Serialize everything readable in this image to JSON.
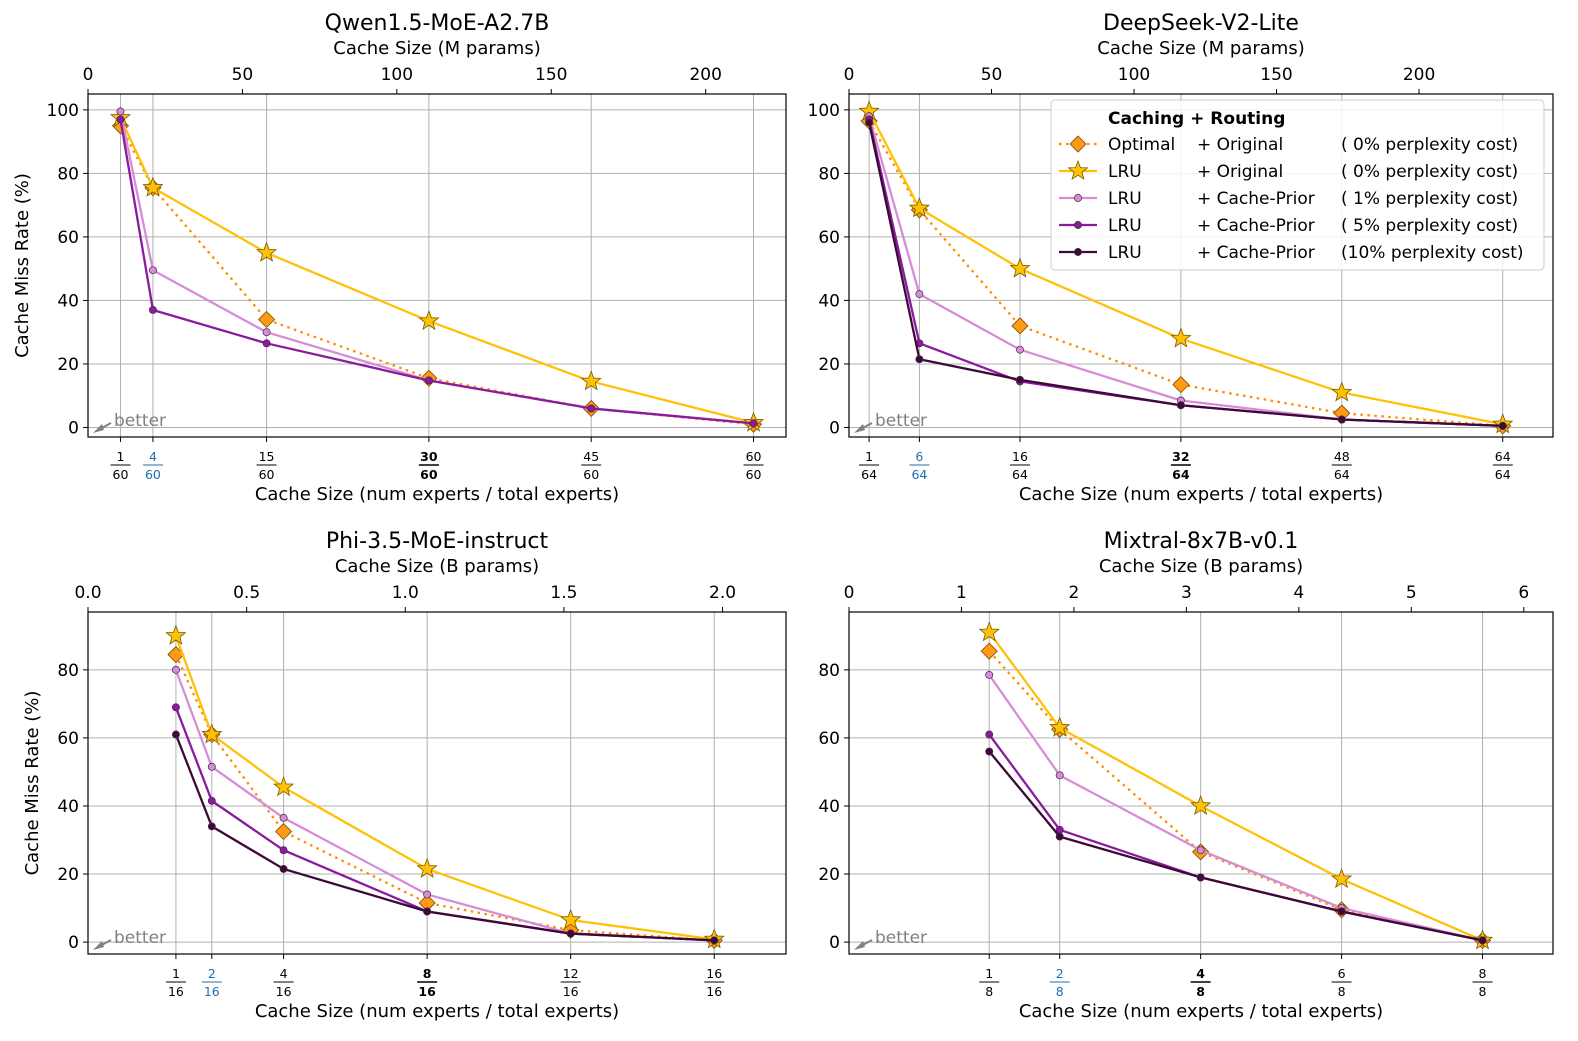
{
  "colors": {
    "optimal": "#ff8c00",
    "optimal_fill": "#ff9a14",
    "lru_original": "#ffc107",
    "cp1": "#d68cd6",
    "cp5": "#8b1a9e",
    "cp10": "#3d0a38",
    "blue_tick": "#1f6fb2",
    "grid": "#b0b0b0",
    "better": "#808080"
  },
  "legend": {
    "title": "Caching + Routing",
    "entries": [
      {
        "key": "optimal",
        "caching": "Optimal",
        "routing": "+ Original",
        "cost": "( 0% perplexity cost)"
      },
      {
        "key": "lru",
        "caching": "LRU",
        "routing": "+ Original",
        "cost": "( 0% perplexity cost)"
      },
      {
        "key": "cp1",
        "caching": "LRU",
        "routing": "+ Cache-Prior",
        "cost": "( 1% perplexity cost)"
      },
      {
        "key": "cp5",
        "caching": "LRU",
        "routing": "+ Cache-Prior",
        "cost": "( 5% perplexity cost)"
      },
      {
        "key": "cp10",
        "caching": "LRU",
        "routing": "+ Cache-Prior",
        "cost": "(10% perplexity cost)"
      }
    ]
  },
  "better_label": "better",
  "chart_data": [
    {
      "type": "line",
      "title": "Qwen1.5-MoE-A2.7B",
      "xlabel": "Cache Size (num experts / total experts)",
      "ylabel": "Cache Miss Rate (%)",
      "top_xlabel": "Cache Size (M params)",
      "total_experts": 60,
      "xlim": [
        -1,
        42
      ],
      "ylim": [
        -3,
        105
      ],
      "yticks": [
        0,
        20,
        40,
        60,
        80,
        100
      ],
      "top_xlim": [
        0,
        226
      ],
      "top_ticks": [
        {
          "v": 0,
          "label": "0"
        },
        {
          "v": 50,
          "label": "50"
        },
        {
          "v": 100,
          "label": "100"
        },
        {
          "v": 150,
          "label": "150"
        },
        {
          "v": 200,
          "label": "200"
        }
      ],
      "xticks": [
        {
          "v": 1,
          "num": "1",
          "den": "60",
          "style": "normal"
        },
        {
          "v": 3,
          "num": "4",
          "den": "60",
          "style": "blue"
        },
        {
          "v": 10,
          "num": "15",
          "den": "60",
          "style": "normal"
        },
        {
          "v": 20,
          "num": "30",
          "den": "60",
          "style": "bold"
        },
        {
          "v": 30,
          "num": "45",
          "den": "60",
          "style": "normal"
        },
        {
          "v": 40,
          "num": "60",
          "den": "60",
          "style": "normal"
        }
      ],
      "better": true,
      "series": [
        {
          "key": "optimal",
          "name": "Optimal + Original",
          "x": [
            1,
            3,
            10,
            20,
            30,
            40
          ],
          "values": [
            95,
            75.5,
            34,
            15.5,
            6,
            1
          ]
        },
        {
          "key": "lru",
          "name": "LRU + Original",
          "x": [
            1,
            3,
            10,
            20,
            30,
            40
          ],
          "values": [
            97.5,
            75.5,
            55,
            33.5,
            14.5,
            1.5
          ]
        },
        {
          "key": "cp1",
          "name": "LRU + Cache-Prior (1%)",
          "x": [
            1,
            3,
            10,
            20,
            30,
            40
          ],
          "values": [
            99.5,
            49.5,
            30,
            14.8,
            6,
            1.3
          ]
        },
        {
          "key": "cp5",
          "name": "LRU + Cache-Prior (5%)",
          "x": [
            1,
            3,
            10,
            20,
            30,
            40
          ],
          "values": [
            97,
            37,
            26.5,
            14.8,
            6,
            1.3
          ]
        }
      ],
      "show_legend": false
    },
    {
      "type": "line",
      "title": "DeepSeek-V2-Lite",
      "xlabel": "Cache Size (num experts / total experts)",
      "ylabel": "",
      "top_xlabel": "Cache Size (M params)",
      "total_experts": 64,
      "xlim": [
        -1,
        69
      ],
      "ylim": [
        -3,
        105
      ],
      "yticks": [
        0,
        20,
        40,
        60,
        80,
        100
      ],
      "top_xlim": [
        0,
        247
      ],
      "top_ticks": [
        {
          "v": 0,
          "label": "0"
        },
        {
          "v": 50,
          "label": "50"
        },
        {
          "v": 100,
          "label": "100"
        },
        {
          "v": 150,
          "label": "150"
        },
        {
          "v": 200,
          "label": "200"
        }
      ],
      "xticks": [
        {
          "v": 1,
          "num": "1",
          "den": "64",
          "style": "normal"
        },
        {
          "v": 6,
          "num": "6",
          "den": "64",
          "style": "blue"
        },
        {
          "v": 16,
          "num": "16",
          "den": "64",
          "style": "normal"
        },
        {
          "v": 32,
          "num": "32",
          "den": "64",
          "style": "bold"
        },
        {
          "v": 48,
          "num": "48",
          "den": "64",
          "style": "normal"
        },
        {
          "v": 64,
          "num": "64",
          "den": "64",
          "style": "normal"
        }
      ],
      "better": true,
      "series": [
        {
          "key": "optimal",
          "name": "Optimal + Original",
          "x": [
            1,
            6,
            16,
            32,
            48,
            64
          ],
          "values": [
            96.5,
            68.5,
            32,
            13.5,
            4.5,
            0.5
          ]
        },
        {
          "key": "lru",
          "name": "LRU + Original",
          "x": [
            1,
            6,
            16,
            32,
            48,
            64
          ],
          "values": [
            99.5,
            69,
            50,
            28,
            11,
            1
          ]
        },
        {
          "key": "cp1",
          "name": "LRU + Cache-Prior (1%)",
          "x": [
            1,
            6,
            16,
            32,
            48,
            64
          ],
          "values": [
            98,
            42,
            24.5,
            8.5,
            2.5,
            0.5
          ]
        },
        {
          "key": "cp5",
          "name": "LRU + Cache-Prior (5%)",
          "x": [
            1,
            6,
            16,
            32,
            48,
            64
          ],
          "values": [
            97,
            26.5,
            14.5,
            7,
            2.5,
            0.5
          ]
        },
        {
          "key": "cp10",
          "name": "LRU + Cache-Prior (10%)",
          "x": [
            1,
            6,
            16,
            32,
            48,
            64
          ],
          "values": [
            96,
            21.5,
            15,
            7,
            2.5,
            0.5
          ]
        }
      ],
      "show_legend": true
    },
    {
      "type": "line",
      "title": "Phi-3.5-MoE-instruct",
      "xlabel": "Cache Size (num experts / total experts)",
      "ylabel": "Cache Miss Rate (%)",
      "top_xlabel": "Cache Size (B params)",
      "total_experts": 16,
      "xlim": [
        -1.45,
        18
      ],
      "ylim": [
        -3.5,
        97
      ],
      "yticks": [
        0,
        20,
        40,
        60,
        80
      ],
      "top_xlim": [
        0,
        2.2
      ],
      "top_ticks": [
        {
          "v": 0,
          "label": "0.0"
        },
        {
          "v": 0.5,
          "label": "0.5"
        },
        {
          "v": 1,
          "label": "1.0"
        },
        {
          "v": 1.5,
          "label": "1.5"
        },
        {
          "v": 2,
          "label": "2.0"
        }
      ],
      "xticks": [
        {
          "v": 1,
          "num": "1",
          "den": "16",
          "style": "normal"
        },
        {
          "v": 2,
          "num": "2",
          "den": "16",
          "style": "blue"
        },
        {
          "v": 4,
          "num": "4",
          "den": "16",
          "style": "normal"
        },
        {
          "v": 8,
          "num": "8",
          "den": "16",
          "style": "bold"
        },
        {
          "v": 12,
          "num": "12",
          "den": "16",
          "style": "normal"
        },
        {
          "v": 16,
          "num": "16",
          "den": "16",
          "style": "normal"
        }
      ],
      "better": true,
      "series": [
        {
          "key": "optimal",
          "name": "Optimal + Original",
          "x": [
            1,
            2,
            4,
            8,
            12,
            16
          ],
          "values": [
            84.5,
            61,
            32.5,
            11.5,
            3.5,
            0.5
          ]
        },
        {
          "key": "lru",
          "name": "LRU + Original",
          "x": [
            1,
            2,
            4,
            8,
            12,
            16
          ],
          "values": [
            90,
            61,
            45.5,
            21.5,
            6.5,
            0.8
          ]
        },
        {
          "key": "cp1",
          "name": "LRU + Cache-Prior (1%)",
          "x": [
            1,
            2,
            4,
            8,
            12,
            16
          ],
          "values": [
            80,
            51.5,
            36.5,
            14,
            2.5,
            0.5
          ]
        },
        {
          "key": "cp5",
          "name": "LRU + Cache-Prior (5%)",
          "x": [
            1,
            2,
            4,
            8,
            12,
            16
          ],
          "values": [
            69,
            41.5,
            27,
            9,
            2.5,
            0.5
          ]
        },
        {
          "key": "cp10",
          "name": "LRU + Cache-Prior (10%)",
          "x": [
            1,
            2,
            4,
            8,
            12,
            16
          ],
          "values": [
            61,
            34,
            21.5,
            9,
            2.5,
            0.5
          ]
        }
      ],
      "show_legend": false
    },
    {
      "type": "line",
      "title": "Mixtral-8x7B-v0.1",
      "xlabel": "Cache Size (num experts / total experts)",
      "ylabel": "",
      "top_xlabel": "Cache Size (B params)",
      "total_experts": 8,
      "xlim": [
        -0.99,
        9
      ],
      "ylim": [
        -3.5,
        97
      ],
      "yticks": [
        0,
        20,
        40,
        60,
        80
      ],
      "top_xlim": [
        0,
        6.26
      ],
      "top_ticks": [
        {
          "v": 0,
          "label": "0"
        },
        {
          "v": 1,
          "label": "1"
        },
        {
          "v": 2,
          "label": "2"
        },
        {
          "v": 3,
          "label": "3"
        },
        {
          "v": 4,
          "label": "4"
        },
        {
          "v": 5,
          "label": "5"
        },
        {
          "v": 6,
          "label": "6"
        }
      ],
      "xticks": [
        {
          "v": 1,
          "num": "1",
          "den": "8",
          "style": "normal"
        },
        {
          "v": 2,
          "num": "2",
          "den": "8",
          "style": "blue"
        },
        {
          "v": 4,
          "num": "4",
          "den": "8",
          "style": "bold"
        },
        {
          "v": 6,
          "num": "6",
          "den": "8",
          "style": "normal"
        },
        {
          "v": 8,
          "num": "8",
          "den": "8",
          "style": "normal"
        }
      ],
      "better": true,
      "series": [
        {
          "key": "optimal",
          "name": "Optimal + Original",
          "x": [
            1,
            2,
            4,
            6,
            8
          ],
          "values": [
            85.5,
            62.5,
            26.5,
            9.5,
            0.5
          ]
        },
        {
          "key": "lru",
          "name": "LRU + Original",
          "x": [
            1,
            2,
            4,
            6,
            8
          ],
          "values": [
            91,
            63,
            40,
            18.5,
            0.5
          ]
        },
        {
          "key": "cp1",
          "name": "LRU + Cache-Prior (1%)",
          "x": [
            1,
            2,
            4,
            6,
            8
          ],
          "values": [
            78.5,
            49,
            27,
            10,
            0.5
          ]
        },
        {
          "key": "cp5",
          "name": "LRU + Cache-Prior (5%)",
          "x": [
            1,
            2,
            4,
            6,
            8
          ],
          "values": [
            61,
            33,
            19,
            9,
            0.5
          ]
        },
        {
          "key": "cp10",
          "name": "LRU + Cache-Prior (10%)",
          "x": [
            1,
            2,
            4,
            6,
            8
          ],
          "values": [
            56,
            31,
            19,
            9,
            0.5
          ]
        }
      ],
      "show_legend": false
    }
  ]
}
